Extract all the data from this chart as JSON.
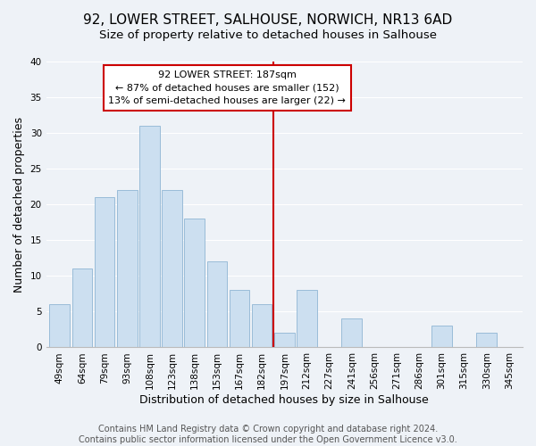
{
  "title": "92, LOWER STREET, SALHOUSE, NORWICH, NR13 6AD",
  "subtitle": "Size of property relative to detached houses in Salhouse",
  "xlabel": "Distribution of detached houses by size in Salhouse",
  "ylabel": "Number of detached properties",
  "categories": [
    "49sqm",
    "64sqm",
    "79sqm",
    "93sqm",
    "108sqm",
    "123sqm",
    "138sqm",
    "153sqm",
    "167sqm",
    "182sqm",
    "197sqm",
    "212sqm",
    "227sqm",
    "241sqm",
    "256sqm",
    "271sqm",
    "286sqm",
    "301sqm",
    "315sqm",
    "330sqm",
    "345sqm"
  ],
  "values": [
    6,
    11,
    21,
    22,
    31,
    22,
    18,
    12,
    8,
    6,
    2,
    8,
    0,
    4,
    0,
    0,
    0,
    3,
    0,
    2,
    0
  ],
  "bar_color": "#ccdff0",
  "bar_edge_color": "#99bcd8",
  "reference_line_x": 9.5,
  "annotation_title": "92 LOWER STREET: 187sqm",
  "annotation_line1": "← 87% of detached houses are smaller (152)",
  "annotation_line2": "13% of semi-detached houses are larger (22) →",
  "annotation_box_color": "#ffffff",
  "annotation_box_edge_color": "#cc0000",
  "ref_line_color": "#cc0000",
  "ylim": [
    0,
    40
  ],
  "yticks": [
    0,
    5,
    10,
    15,
    20,
    25,
    30,
    35,
    40
  ],
  "background_color": "#eef2f7",
  "grid_color": "#ffffff",
  "title_fontsize": 11,
  "subtitle_fontsize": 9.5,
  "axis_label_fontsize": 9,
  "tick_fontsize": 7.5,
  "annotation_fontsize": 8,
  "footer_fontsize": 7,
  "footer_line1": "Contains HM Land Registry data © Crown copyright and database right 2024.",
  "footer_line2": "Contains public sector information licensed under the Open Government Licence v3.0."
}
